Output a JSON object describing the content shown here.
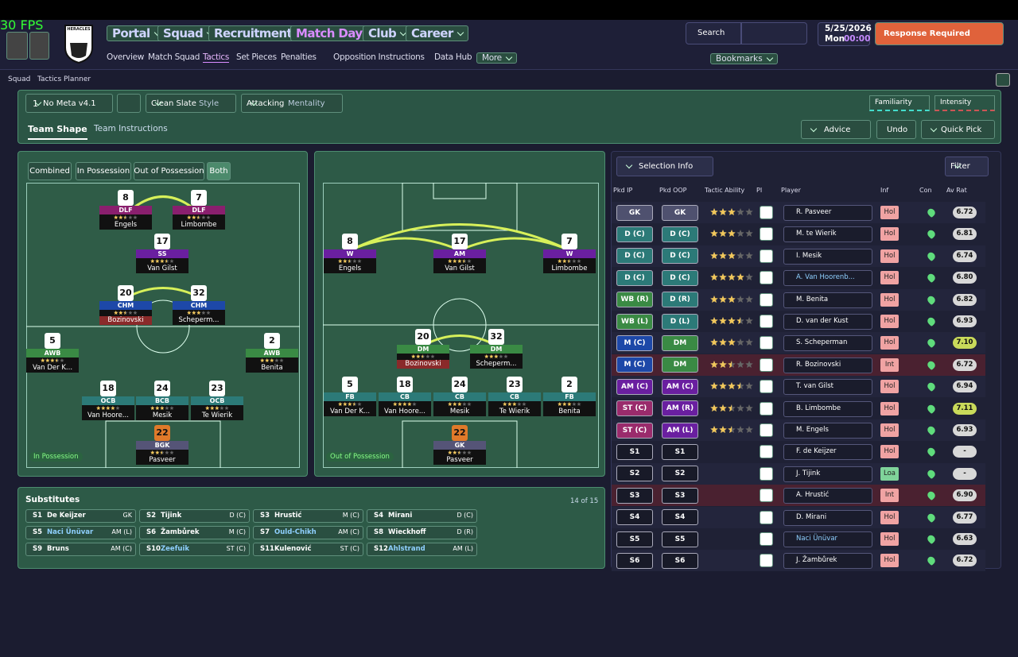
{
  "header": {
    "fps": "30 FPS",
    "club": "HERACLES",
    "nav": [
      "Portal",
      "Squad",
      "Recruitment",
      "Match Day",
      "Club",
      "Career"
    ],
    "subnav": [
      "Overview",
      "Match Squad",
      "Tactics",
      "Set Pieces",
      "Penalties",
      "Opposition Instructions",
      "Data Hub",
      "More"
    ],
    "search": "Search",
    "date": "5/25/2026",
    "day": "Mon",
    "time": "00:00",
    "alert": "Response Required",
    "bookmarks": "Bookmarks"
  },
  "breadcrumb": [
    "Squad",
    "Tactics Planner"
  ],
  "toolbar": {
    "slot": "1",
    "tactic": "No Meta v4.1",
    "style": "Clean Slate",
    "style_label": "Style",
    "mentality": "Attacking",
    "mentality_label": "Mentality",
    "familiarity": "Familiarity",
    "intensity": "Intensity",
    "tabs": [
      "Team Shape",
      "Team Instructions"
    ],
    "advice": "Advice",
    "undo": "Undo",
    "quick_pick": "Quick Pick"
  },
  "pitches": [
    {
      "views": [
        "Combined",
        "In Possession",
        "Out of Possession",
        "Both"
      ],
      "label": "In Possession",
      "players": [
        {
          "number": "8",
          "role": "DLF",
          "name": "Engels",
          "stars": 2.5
        },
        {
          "number": "7",
          "role": "DLF",
          "name": "Limbombe",
          "stars": 2.5
        },
        {
          "number": "17",
          "role": "SS",
          "name": "Van Gilst",
          "stars": 3.5
        },
        {
          "number": "20",
          "role": "CHM",
          "name": "Bozinovski",
          "stars": 2.5
        },
        {
          "number": "32",
          "role": "CHM",
          "name": "Scheperm...",
          "stars": 3
        },
        {
          "number": "5",
          "role": "AWB",
          "name": "Van Der K...",
          "stars": 3.5
        },
        {
          "number": "2",
          "role": "AWB",
          "name": "Benita",
          "stars": 3
        },
        {
          "number": "18",
          "role": "OCB",
          "name": "Van Hoore...",
          "stars": 4
        },
        {
          "number": "24",
          "role": "BCB",
          "name": "Mesik",
          "stars": 3
        },
        {
          "number": "23",
          "role": "OCB",
          "name": "Te Wierik",
          "stars": 3
        },
        {
          "number": "22",
          "role": "BGK",
          "name": "Pasveer",
          "stars": 2.5
        }
      ]
    },
    {
      "label": "Out of Possession",
      "players": [
        {
          "number": "8",
          "role": "W",
          "name": "Engels",
          "stars": 2.5
        },
        {
          "number": "17",
          "role": "AM",
          "name": "Van Gilst",
          "stars": 3.5
        },
        {
          "number": "7",
          "role": "W",
          "name": "Limbombe",
          "stars": 2.5
        },
        {
          "number": "20",
          "role": "DM",
          "name": "Bozinovski",
          "stars": 2.5
        },
        {
          "number": "32",
          "role": "DM",
          "name": "Scheperm...",
          "stars": 3
        },
        {
          "number": "5",
          "role": "FB",
          "name": "Van Der K...",
          "stars": 3.5
        },
        {
          "number": "18",
          "role": "CB",
          "name": "Van Hoore...",
          "stars": 4
        },
        {
          "number": "24",
          "role": "CB",
          "name": "Mesik",
          "stars": 3
        },
        {
          "number": "23",
          "role": "CB",
          "name": "Te Wierik",
          "stars": 3
        },
        {
          "number": "2",
          "role": "FB",
          "name": "Benita",
          "stars": 3
        },
        {
          "number": "22",
          "role": "GK",
          "name": "Pasveer",
          "stars": 2.5
        }
      ]
    }
  ],
  "substitutes": {
    "title": "Substitutes",
    "count": "14 of 15",
    "players": [
      {
        "slot": "S1",
        "name": "De Keijzer",
        "position": "GK"
      },
      {
        "slot": "S2",
        "name": "Tijink",
        "position": "D (C)"
      },
      {
        "slot": "S3",
        "name": "Hrustić",
        "position": "M (C)"
      },
      {
        "slot": "S4",
        "name": "Mirani",
        "position": "D (C)"
      },
      {
        "slot": "S5",
        "name": "Naci Ünüvar",
        "position": "AM (L)"
      },
      {
        "slot": "S6",
        "name": "Žambůrek",
        "position": "M (C)"
      },
      {
        "slot": "S7",
        "name": "Ould-Chikh",
        "position": "AM (C)"
      },
      {
        "slot": "S8",
        "name": "Wieckhoff",
        "position": "D (R)"
      },
      {
        "slot": "S9",
        "name": "Bruns",
        "position": "AM (C)"
      },
      {
        "slot": "S10",
        "name": "Zeefuik",
        "position": "ST (C)"
      },
      {
        "slot": "S11",
        "name": "Kulenović",
        "position": "ST (C)"
      },
      {
        "slot": "S12",
        "name": "Ahlstrand",
        "position": "AM (L)"
      }
    ]
  },
  "selection": {
    "button": "Selection Info",
    "filter": "Filter",
    "columns": [
      "Pkd IP",
      "Pkd OOP",
      "Tactic Ability",
      "PI",
      "Player",
      "Inf",
      "Con",
      "Av Rat"
    ],
    "rows": [
      {
        "ip": "GK",
        "oop": "GK",
        "ability": 3,
        "player": "R. Pasveer",
        "inf": "Hol",
        "rating": "6.72"
      },
      {
        "ip": "D (C)",
        "oop": "D (C)",
        "ability": 3,
        "player": "M. te Wierik",
        "inf": "Hol",
        "rating": "6.81"
      },
      {
        "ip": "D (C)",
        "oop": "D (C)",
        "ability": 3,
        "player": "I. Mesik",
        "inf": "Hol",
        "rating": "6.74"
      },
      {
        "ip": "D (C)",
        "oop": "D (C)",
        "ability": 4,
        "player": "A. Van Hoorenb...",
        "inf": "Hol",
        "rating": "6.80"
      },
      {
        "ip": "WB (R)",
        "oop": "D (R)",
        "ability": 3,
        "player": "M. Benita",
        "inf": "Hol",
        "rating": "6.82"
      },
      {
        "ip": "WB (L)",
        "oop": "D (L)",
        "ability": 3.5,
        "player": "D. van der Kust",
        "inf": "Hol",
        "rating": "6.93"
      },
      {
        "ip": "M (C)",
        "oop": "DM",
        "ability": 3,
        "player": "S. Scheperman",
        "inf": "Hol",
        "rating": "7.10"
      },
      {
        "ip": "M (C)",
        "oop": "DM",
        "ability": 2.5,
        "player": "R. Bozinovski",
        "inf": "Int",
        "rating": "6.72"
      },
      {
        "ip": "AM (C)",
        "oop": "AM (C)",
        "ability": 3.5,
        "player": "T. van Gilst",
        "inf": "Hol",
        "rating": "6.94"
      },
      {
        "ip": "ST (C)",
        "oop": "AM (R)",
        "ability": 2.5,
        "player": "B. Limbombe",
        "inf": "Hol",
        "rating": "7.11"
      },
      {
        "ip": "ST (C)",
        "oop": "AM (L)",
        "ability": 2.5,
        "player": "M. Engels",
        "inf": "Hol",
        "rating": "6.93"
      },
      {
        "ip": "S1",
        "oop": "S1",
        "ability": null,
        "player": "F. de Keijzer",
        "inf": "Hol",
        "rating": "-"
      },
      {
        "ip": "S2",
        "oop": "S2",
        "ability": null,
        "player": "J. Tijink",
        "inf": "Loa",
        "rating": "-"
      },
      {
        "ip": "S3",
        "oop": "S3",
        "ability": null,
        "player": "A. Hrustić",
        "inf": "Int",
        "rating": "6.90"
      },
      {
        "ip": "S4",
        "oop": "S4",
        "ability": null,
        "player": "D. Mirani",
        "inf": "Hol",
        "rating": "6.77"
      },
      {
        "ip": "S5",
        "oop": "S5",
        "ability": null,
        "player": "Naci Ünüvar",
        "inf": "Hol",
        "rating": "6.63"
      },
      {
        "ip": "S6",
        "oop": "S6",
        "ability": null,
        "player": "J. Žambůrek",
        "inf": "Hol",
        "rating": "6.72"
      }
    ]
  }
}
